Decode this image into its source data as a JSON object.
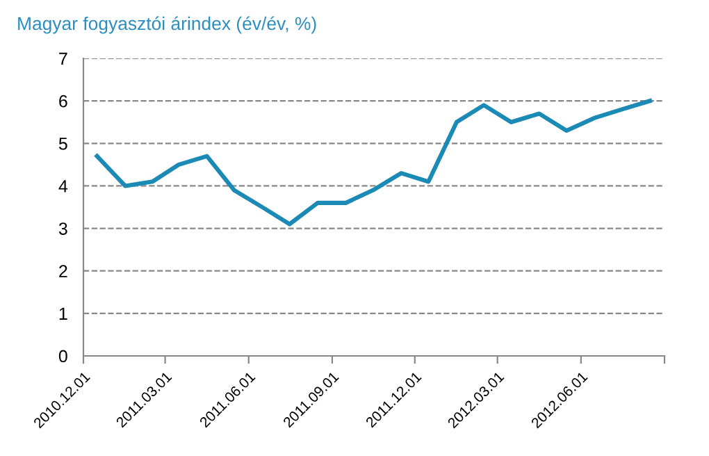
{
  "chart_data": {
    "type": "line",
    "title": "Magyar fogyasztói árindex (év/év, %)",
    "x": [
      "2010-12-16",
      "2011-01-16",
      "2011-02-15",
      "2011-03-16",
      "2011-04-16",
      "2011-05-16",
      "2011-06-16",
      "2011-07-16",
      "2011-08-16",
      "2011-09-16",
      "2011-10-16",
      "2011-11-16",
      "2011-12-16",
      "2012-01-16",
      "2012-02-15",
      "2012-03-16",
      "2012-04-16",
      "2012-05-16",
      "2012-06-16",
      "2012-07-16",
      "2012-08-16"
    ],
    "series": [
      {
        "color": "#1b8ab5",
        "values": [
          4.7,
          4.0,
          4.1,
          4.5,
          4.7,
          3.9,
          3.5,
          3.1,
          3.6,
          3.6,
          3.9,
          4.3,
          4.1,
          5.5,
          5.9,
          5.5,
          5.7,
          5.3,
          5.6,
          5.8,
          6.0
        ]
      }
    ],
    "xlim": [
      "2010-12-01",
      "2012-09-01"
    ],
    "xticks": [
      {
        "value": "2010-12-01",
        "label": "2010.12.01"
      },
      {
        "value": "2011-03-01",
        "label": "2011.03.01"
      },
      {
        "value": "2011-06-01",
        "label": "2011.06.01"
      },
      {
        "value": "2011-09-01",
        "label": "2011.09.01"
      },
      {
        "value": "2011-12-01",
        "label": "2011.12.01"
      },
      {
        "value": "2012-03-01",
        "label": "2012.03.01"
      },
      {
        "value": "2012-06-01",
        "label": "2012.06.01"
      },
      {
        "value": "2012-09-01",
        "label": null
      }
    ],
    "ylim": [
      0,
      7
    ],
    "yticks": [
      0,
      1,
      2,
      3,
      4,
      5,
      6,
      7
    ],
    "grid": "y",
    "legend": false,
    "marker": "none",
    "line_style": "solid"
  }
}
